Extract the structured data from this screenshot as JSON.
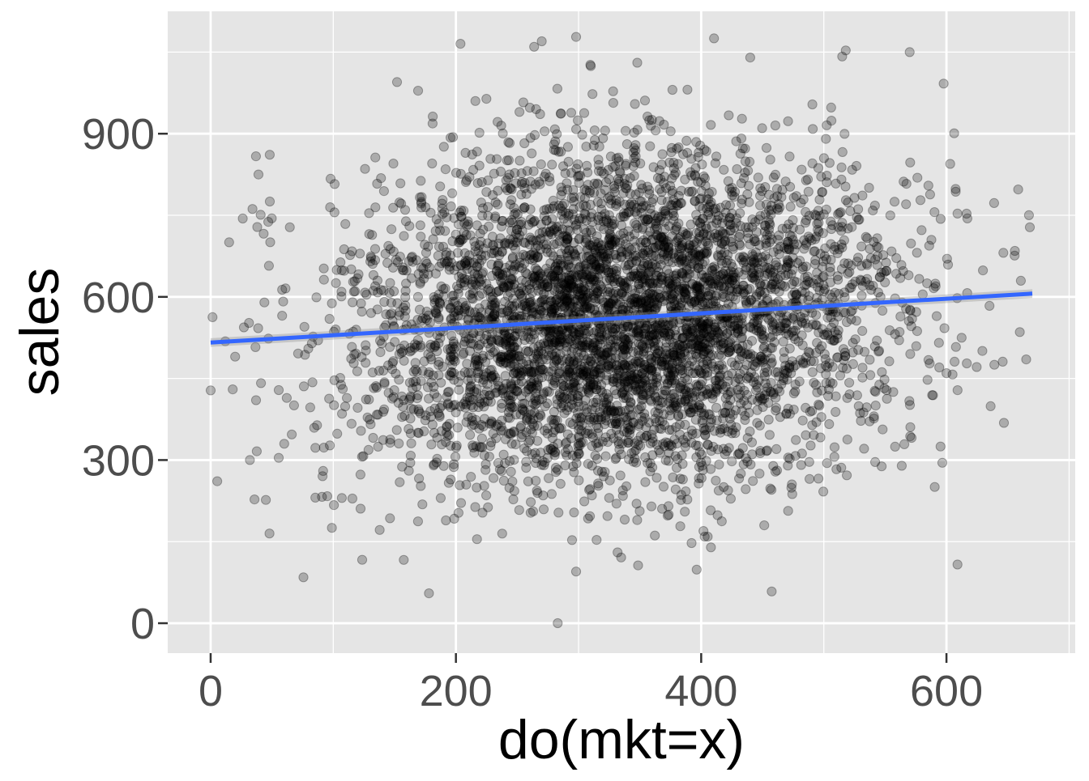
{
  "chart_data": {
    "type": "scatter",
    "title": "",
    "xlabel": "do(mkt=x)",
    "ylabel": "sales",
    "xlim": [
      -35,
      705
    ],
    "ylim": [
      -55,
      1125
    ],
    "x_ticks": [
      0,
      200,
      400,
      600
    ],
    "x_tick_labels": [
      "0",
      "200",
      "400",
      "600"
    ],
    "y_ticks": [
      0,
      300,
      600,
      900
    ],
    "y_tick_labels": [
      "0",
      "300",
      "600",
      "900"
    ],
    "grid": true,
    "legend": "none",
    "colors": {
      "panel_background": "#e5e5e5",
      "grid": "#ffffff",
      "point": "#000000",
      "fit_line": "#3366ff",
      "ci_band": "#999999"
    },
    "points": {
      "n": 5000,
      "x_mean": 335,
      "x_sd": 110,
      "x_range": [
        0,
        670
      ],
      "y_mean": 560,
      "y_sd": 150,
      "y_range": [
        0,
        1080
      ],
      "opacity": 0.25,
      "annotated": [
        [
          0,
          428
        ],
        [
          18,
          430
        ],
        [
          20,
          490
        ],
        [
          32,
          300
        ],
        [
          37,
          410
        ],
        [
          39,
          825
        ],
        [
          47,
          738
        ],
        [
          48,
          165
        ],
        [
          60,
          330
        ],
        [
          283,
          0
        ],
        [
          178,
          55
        ],
        [
          298,
          95
        ],
        [
          609,
          108
        ],
        [
          270,
          1070
        ],
        [
          298,
          1078
        ],
        [
          570,
          1050
        ],
        [
          515,
          1042
        ],
        [
          440,
          1040
        ],
        [
          152,
          995
        ],
        [
          668,
          728
        ],
        [
          665,
          485
        ]
      ]
    },
    "fit": {
      "method": "lm",
      "x": [
        0,
        670
      ],
      "y": [
        516,
        606
      ],
      "se": 8
    }
  }
}
